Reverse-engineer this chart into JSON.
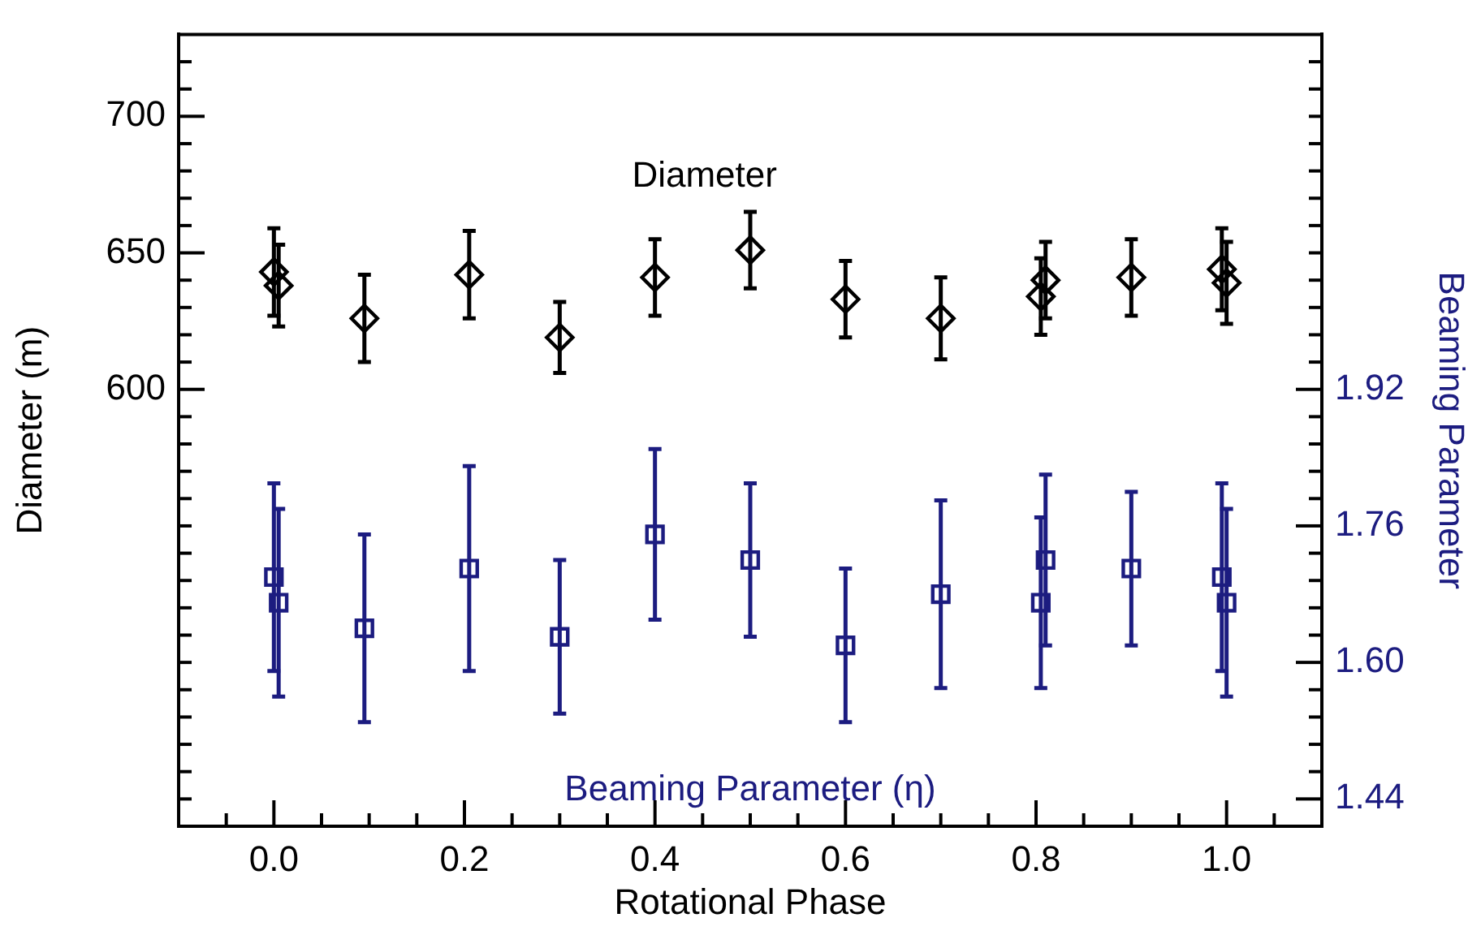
{
  "chart_data": {
    "type": "scatter",
    "xlabel": "Rotational Phase",
    "ylabel": "Diameter (m)",
    "y2label": "Beaming Parameter",
    "xlim": [
      -0.1,
      1.1
    ],
    "xticks": [
      {
        "value": -0.05,
        "label": null
      },
      {
        "value": 0,
        "label": "0.0"
      },
      {
        "value": 0.05,
        "label": null
      },
      {
        "value": 0.1,
        "label": null
      },
      {
        "value": 0.15,
        "label": null
      },
      {
        "value": 0.2,
        "label": "0.2"
      },
      {
        "value": 0.25,
        "label": null
      },
      {
        "value": 0.3,
        "label": null
      },
      {
        "value": 0.35,
        "label": null
      },
      {
        "value": 0.4,
        "label": "0.4"
      },
      {
        "value": 0.45,
        "label": null
      },
      {
        "value": 0.5,
        "label": null
      },
      {
        "value": 0.55,
        "label": null
      },
      {
        "value": 0.6,
        "label": "0.6"
      },
      {
        "value": 0.65,
        "label": null
      },
      {
        "value": 0.7,
        "label": null
      },
      {
        "value": 0.75,
        "label": null
      },
      {
        "value": 0.8,
        "label": "0.8"
      },
      {
        "value": 0.85,
        "label": null
      },
      {
        "value": 0.9,
        "label": null
      },
      {
        "value": 0.95,
        "label": null
      },
      {
        "value": 1,
        "label": "1.0"
      },
      {
        "value": 1.05,
        "label": null
      }
    ],
    "ylim": [
      440,
      730
    ],
    "yticks": [
      {
        "value": 450,
        "label": null
      },
      {
        "value": 460,
        "label": null
      },
      {
        "value": 470,
        "label": null
      },
      {
        "value": 480,
        "label": null
      },
      {
        "value": 490,
        "label": null
      },
      {
        "value": 500,
        "label": null
      },
      {
        "value": 510,
        "label": null
      },
      {
        "value": 520,
        "label": null
      },
      {
        "value": 530,
        "label": null
      },
      {
        "value": 540,
        "label": null
      },
      {
        "value": 550,
        "label": null
      },
      {
        "value": 560,
        "label": null
      },
      {
        "value": 570,
        "label": null
      },
      {
        "value": 580,
        "label": null
      },
      {
        "value": 590,
        "label": null
      },
      600,
      {
        "value": 610,
        "label": null
      },
      {
        "value": 620,
        "label": null
      },
      {
        "value": 630,
        "label": null
      },
      {
        "value": 640,
        "label": null
      },
      650,
      {
        "value": 660,
        "label": null
      },
      {
        "value": 670,
        "label": null
      },
      {
        "value": 680,
        "label": null
      },
      {
        "value": 690,
        "label": null
      },
      700,
      {
        "value": 710,
        "label": null
      },
      {
        "value": 720,
        "label": null
      }
    ],
    "y2lim": [
      1.408,
      2.336
    ],
    "y2ticks": [
      1.44,
      {
        "value": 1.472,
        "label": null
      },
      {
        "value": 1.504,
        "label": null
      },
      {
        "value": 1.536,
        "label": null
      },
      {
        "value": 1.568,
        "label": null
      },
      {
        "value": 1.6,
        "label": "1.60"
      },
      {
        "value": 1.632,
        "label": null
      },
      {
        "value": 1.664,
        "label": null
      },
      {
        "value": 1.696,
        "label": null
      },
      {
        "value": 1.728,
        "label": null
      },
      1.76,
      {
        "value": 1.792,
        "label": null
      },
      {
        "value": 1.824,
        "label": null
      },
      {
        "value": 1.856,
        "label": null
      },
      {
        "value": 1.888,
        "label": null
      },
      1.92,
      {
        "value": 1.952,
        "label": null
      },
      {
        "value": 1.984,
        "label": null
      },
      {
        "value": 2.016,
        "label": null
      },
      {
        "value": 2.048,
        "label": null
      },
      {
        "value": 2.08,
        "label": null
      },
      {
        "value": 2.112,
        "label": null
      },
      {
        "value": 2.144,
        "label": null
      },
      {
        "value": 2.176,
        "label": null
      },
      {
        "value": 2.208,
        "label": null
      },
      {
        "value": 2.24,
        "label": null
      },
      {
        "value": 2.272,
        "label": null
      },
      {
        "value": 2.304,
        "label": null
      }
    ],
    "grid": false,
    "legend": false,
    "series": [
      {
        "name": "Diameter",
        "color": "#000000",
        "marker": "diamond",
        "x": [
          0,
          0.005,
          0.095,
          0.205,
          0.3,
          0.4,
          0.5,
          0.6,
          0.7,
          0.805,
          0.81,
          0.9,
          0.995,
          1.0
        ],
        "values": [
          643,
          638,
          626,
          642,
          619,
          641,
          651,
          633,
          626,
          634,
          640,
          641,
          644,
          639
        ],
        "errors": [
          16,
          15,
          16,
          16,
          13,
          14,
          14,
          14,
          15,
          14,
          14,
          14,
          15,
          15
        ]
      },
      {
        "name": "Beaming Parameter (η)",
        "color": "#1c1c80",
        "marker": "square",
        "axis": "y2",
        "x": [
          0,
          0.005,
          0.095,
          0.205,
          0.3,
          0.4,
          0.5,
          0.6,
          0.7,
          0.805,
          0.81,
          0.9,
          0.995,
          1.0
        ],
        "values": [
          1.7,
          1.67,
          1.64,
          1.71,
          1.63,
          1.75,
          1.72,
          1.62,
          1.68,
          1.67,
          1.72,
          1.71,
          1.7,
          1.67
        ],
        "errors": [
          0.11,
          0.11,
          0.11,
          0.12,
          0.09,
          0.1,
          0.09,
          0.09,
          0.11,
          0.1,
          0.1,
          0.09,
          0.11,
          0.11
        ]
      }
    ]
  }
}
